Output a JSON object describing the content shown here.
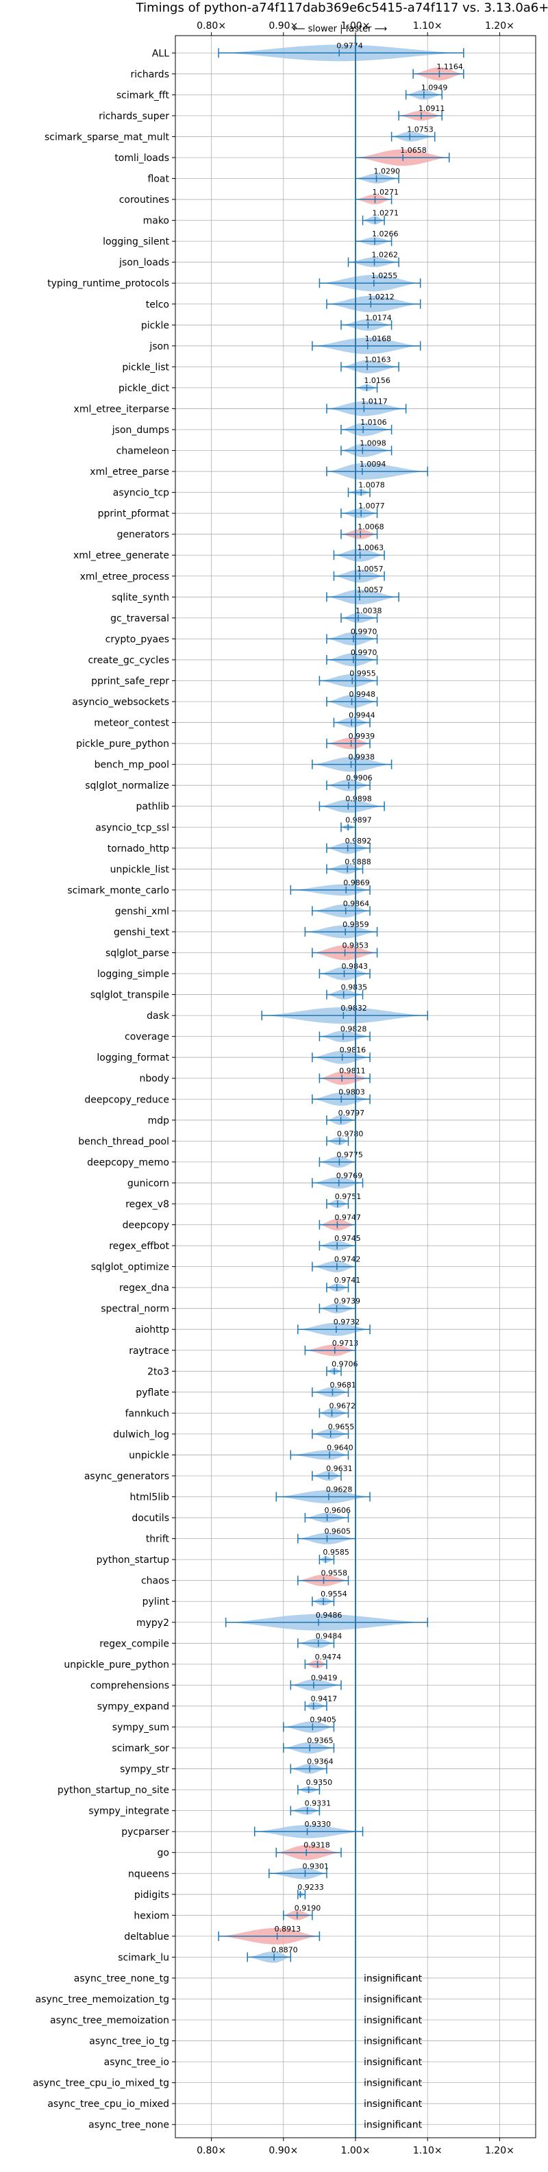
{
  "chart_data": {
    "type": "violin",
    "title": "Timings of python-a74f117dab369e6c5415-a74f117 vs. 3.13.0a6+",
    "direction_label": "⟵ slower | faster ⟶",
    "x_tick_labels": [
      "0.80×",
      "0.90×",
      "1.00×",
      "1.10×",
      "1.20×"
    ],
    "x_ticks": [
      0.8,
      0.9,
      1.0,
      1.1,
      1.2
    ],
    "xlim": [
      0.75,
      1.25
    ],
    "grid": true,
    "reference_line": 1.0,
    "colors": {
      "faster": "#9fc5e8",
      "slower": "#f4a7a7",
      "line": "#1f77b4",
      "grid": "#b0b0b0"
    },
    "insignificant_text": "insignificant",
    "benchmarks": [
      {
        "name": "ALL",
        "value": 0.9774,
        "min": 0.81,
        "max": 1.15,
        "width": 1.0,
        "color": "faster",
        "label": "0.9774"
      },
      {
        "name": "richards",
        "value": 1.1164,
        "min": 1.08,
        "max": 1.15,
        "width": 0.8,
        "color": "slower",
        "label": "1.1164"
      },
      {
        "name": "scimark_fft",
        "value": 1.0949,
        "min": 1.07,
        "max": 1.12,
        "width": 0.6,
        "color": "faster",
        "label": "1.0949"
      },
      {
        "name": "richards_super",
        "value": 1.0911,
        "min": 1.06,
        "max": 1.12,
        "width": 0.6,
        "color": "slower",
        "label": "1.0911"
      },
      {
        "name": "scimark_sparse_mat_mult",
        "value": 1.0753,
        "min": 1.05,
        "max": 1.11,
        "width": 0.6,
        "color": "faster",
        "label": "1.0753"
      },
      {
        "name": "tomli_loads",
        "value": 1.0658,
        "min": 1.0,
        "max": 1.13,
        "width": 1.0,
        "color": "slower",
        "label": "1.0658"
      },
      {
        "name": "float",
        "value": 1.029,
        "min": 1.0,
        "max": 1.06,
        "width": 0.6,
        "color": "faster",
        "label": "1.0290"
      },
      {
        "name": "coroutines",
        "value": 1.0271,
        "min": 1.0,
        "max": 1.05,
        "width": 0.6,
        "color": "slower",
        "label": "1.0271"
      },
      {
        "name": "mako",
        "value": 1.0271,
        "min": 1.01,
        "max": 1.04,
        "width": 0.5,
        "color": "faster",
        "label": "1.0271"
      },
      {
        "name": "logging_silent",
        "value": 1.0266,
        "min": 1.0,
        "max": 1.05,
        "width": 0.5,
        "color": "faster",
        "label": "1.0266"
      },
      {
        "name": "json_loads",
        "value": 1.0262,
        "min": 0.99,
        "max": 1.06,
        "width": 0.6,
        "color": "faster",
        "label": "1.0262"
      },
      {
        "name": "typing_runtime_protocols",
        "value": 1.0255,
        "min": 0.95,
        "max": 1.09,
        "width": 1.0,
        "color": "faster",
        "label": "1.0255"
      },
      {
        "name": "telco",
        "value": 1.0212,
        "min": 0.96,
        "max": 1.09,
        "width": 1.0,
        "color": "faster",
        "label": "1.0212"
      },
      {
        "name": "pickle",
        "value": 1.0174,
        "min": 0.98,
        "max": 1.05,
        "width": 0.7,
        "color": "faster",
        "label": "1.0174"
      },
      {
        "name": "json",
        "value": 1.0168,
        "min": 0.94,
        "max": 1.09,
        "width": 1.0,
        "color": "faster",
        "label": "1.0168"
      },
      {
        "name": "pickle_list",
        "value": 1.0163,
        "min": 0.98,
        "max": 1.06,
        "width": 0.8,
        "color": "faster",
        "label": "1.0163"
      },
      {
        "name": "pickle_dict",
        "value": 1.0156,
        "min": 1.0,
        "max": 1.03,
        "width": 0.4,
        "color": "faster",
        "label": "1.0156"
      },
      {
        "name": "xml_etree_iterparse",
        "value": 1.0117,
        "min": 0.96,
        "max": 1.07,
        "width": 0.9,
        "color": "faster",
        "label": "1.0117"
      },
      {
        "name": "json_dumps",
        "value": 1.0106,
        "min": 0.98,
        "max": 1.05,
        "width": 0.8,
        "color": "faster",
        "label": "1.0106"
      },
      {
        "name": "chameleon",
        "value": 1.0098,
        "min": 0.98,
        "max": 1.05,
        "width": 0.8,
        "color": "faster",
        "label": "1.0098"
      },
      {
        "name": "xml_etree_parse",
        "value": 1.0094,
        "min": 0.96,
        "max": 1.1,
        "width": 1.0,
        "color": "faster",
        "label": "1.0094"
      },
      {
        "name": "asyncio_tcp",
        "value": 1.0078,
        "min": 0.99,
        "max": 1.02,
        "width": 0.4,
        "color": "faster",
        "label": "1.0078"
      },
      {
        "name": "pprint_pformat",
        "value": 1.0077,
        "min": 0.98,
        "max": 1.03,
        "width": 0.6,
        "color": "faster",
        "label": "1.0077"
      },
      {
        "name": "generators",
        "value": 1.0068,
        "min": 0.98,
        "max": 1.03,
        "width": 0.6,
        "color": "slower",
        "label": "1.0068"
      },
      {
        "name": "xml_etree_generate",
        "value": 1.0063,
        "min": 0.97,
        "max": 1.04,
        "width": 0.8,
        "color": "faster",
        "label": "1.0063"
      },
      {
        "name": "xml_etree_process",
        "value": 1.0057,
        "min": 0.97,
        "max": 1.04,
        "width": 0.8,
        "color": "faster",
        "label": "1.0057"
      },
      {
        "name": "sqlite_synth",
        "value": 1.0057,
        "min": 0.96,
        "max": 1.06,
        "width": 0.9,
        "color": "faster",
        "label": "1.0057"
      },
      {
        "name": "gc_traversal",
        "value": 1.0038,
        "min": 0.98,
        "max": 1.03,
        "width": 0.6,
        "color": "faster",
        "label": "1.0038"
      },
      {
        "name": "crypto_pyaes",
        "value": 0.997,
        "min": 0.96,
        "max": 1.03,
        "width": 0.8,
        "color": "faster",
        "label": "0.9970"
      },
      {
        "name": "create_gc_cycles",
        "value": 0.997,
        "min": 0.96,
        "max": 1.03,
        "width": 0.8,
        "color": "faster",
        "label": "0.9970"
      },
      {
        "name": "pprint_safe_repr",
        "value": 0.9955,
        "min": 0.95,
        "max": 1.03,
        "width": 0.8,
        "color": "faster",
        "label": "0.9955"
      },
      {
        "name": "asyncio_websockets",
        "value": 0.9948,
        "min": 0.96,
        "max": 1.03,
        "width": 0.8,
        "color": "faster",
        "label": "0.9948"
      },
      {
        "name": "meteor_contest",
        "value": 0.9944,
        "min": 0.97,
        "max": 1.02,
        "width": 0.6,
        "color": "faster",
        "label": "0.9944"
      },
      {
        "name": "pickle_pure_python",
        "value": 0.9939,
        "min": 0.96,
        "max": 1.02,
        "width": 0.7,
        "color": "slower",
        "label": "0.9939"
      },
      {
        "name": "bench_mp_pool",
        "value": 0.9938,
        "min": 0.94,
        "max": 1.05,
        "width": 0.9,
        "color": "faster",
        "label": "0.9938"
      },
      {
        "name": "sqlglot_normalize",
        "value": 0.9906,
        "min": 0.96,
        "max": 1.02,
        "width": 0.7,
        "color": "faster",
        "label": "0.9906"
      },
      {
        "name": "pathlib",
        "value": 0.9898,
        "min": 0.95,
        "max": 1.04,
        "width": 0.8,
        "color": "faster",
        "label": "0.9898"
      },
      {
        "name": "asyncio_tcp_ssl",
        "value": 0.9897,
        "min": 0.98,
        "max": 1.0,
        "width": 0.3,
        "color": "faster",
        "label": "0.9897"
      },
      {
        "name": "tornado_http",
        "value": 0.9892,
        "min": 0.96,
        "max": 1.02,
        "width": 0.7,
        "color": "faster",
        "label": "0.9892"
      },
      {
        "name": "unpickle_list",
        "value": 0.9888,
        "min": 0.96,
        "max": 1.01,
        "width": 0.6,
        "color": "faster",
        "label": "0.9888"
      },
      {
        "name": "scimark_monte_carlo",
        "value": 0.9869,
        "min": 0.91,
        "max": 1.02,
        "width": 0.7,
        "color": "faster",
        "label": "0.9869"
      },
      {
        "name": "genshi_xml",
        "value": 0.9864,
        "min": 0.94,
        "max": 1.02,
        "width": 0.8,
        "color": "faster",
        "label": "0.9864"
      },
      {
        "name": "genshi_text",
        "value": 0.9859,
        "min": 0.93,
        "max": 1.03,
        "width": 0.8,
        "color": "faster",
        "label": "0.9859"
      },
      {
        "name": "sqlglot_parse",
        "value": 0.9853,
        "min": 0.94,
        "max": 1.03,
        "width": 0.9,
        "color": "slower",
        "label": "0.9853"
      },
      {
        "name": "logging_simple",
        "value": 0.9843,
        "min": 0.95,
        "max": 1.02,
        "width": 0.8,
        "color": "faster",
        "label": "0.9843"
      },
      {
        "name": "sqlglot_transpile",
        "value": 0.9835,
        "min": 0.96,
        "max": 1.01,
        "width": 0.6,
        "color": "faster",
        "label": "0.9835"
      },
      {
        "name": "dask",
        "value": 0.9832,
        "min": 0.87,
        "max": 1.1,
        "width": 1.0,
        "color": "faster",
        "label": "0.9832"
      },
      {
        "name": "coverage",
        "value": 0.9828,
        "min": 0.95,
        "max": 1.02,
        "width": 0.7,
        "color": "faster",
        "label": "0.9828"
      },
      {
        "name": "logging_format",
        "value": 0.9816,
        "min": 0.94,
        "max": 1.02,
        "width": 0.8,
        "color": "faster",
        "label": "0.9816"
      },
      {
        "name": "nbody",
        "value": 0.9811,
        "min": 0.95,
        "max": 1.02,
        "width": 0.8,
        "color": "slower",
        "label": "0.9811"
      },
      {
        "name": "deepcopy_reduce",
        "value": 0.9803,
        "min": 0.94,
        "max": 1.02,
        "width": 0.8,
        "color": "faster",
        "label": "0.9803"
      },
      {
        "name": "mdp",
        "value": 0.9797,
        "min": 0.96,
        "max": 1.0,
        "width": 0.6,
        "color": "faster",
        "label": "0.9797"
      },
      {
        "name": "bench_thread_pool",
        "value": 0.978,
        "min": 0.96,
        "max": 0.99,
        "width": 0.5,
        "color": "faster",
        "label": "0.9780"
      },
      {
        "name": "deepcopy_memo",
        "value": 0.9775,
        "min": 0.95,
        "max": 1.0,
        "width": 0.7,
        "color": "faster",
        "label": "0.9775"
      },
      {
        "name": "gunicorn",
        "value": 0.9769,
        "min": 0.94,
        "max": 1.01,
        "width": 0.7,
        "color": "faster",
        "label": "0.9769"
      },
      {
        "name": "regex_v8",
        "value": 0.9751,
        "min": 0.96,
        "max": 0.99,
        "width": 0.5,
        "color": "faster",
        "label": "0.9751"
      },
      {
        "name": "deepcopy",
        "value": 0.9747,
        "min": 0.95,
        "max": 1.0,
        "width": 0.7,
        "color": "slower",
        "label": "0.9747"
      },
      {
        "name": "regex_effbot",
        "value": 0.9745,
        "min": 0.95,
        "max": 1.0,
        "width": 0.6,
        "color": "faster",
        "label": "0.9745"
      },
      {
        "name": "sqlglot_optimize",
        "value": 0.9742,
        "min": 0.94,
        "max": 1.0,
        "width": 0.7,
        "color": "faster",
        "label": "0.9742"
      },
      {
        "name": "regex_dna",
        "value": 0.9741,
        "min": 0.96,
        "max": 0.99,
        "width": 0.5,
        "color": "faster",
        "label": "0.9741"
      },
      {
        "name": "spectral_norm",
        "value": 0.9739,
        "min": 0.95,
        "max": 1.0,
        "width": 0.6,
        "color": "faster",
        "label": "0.9739"
      },
      {
        "name": "aiohttp",
        "value": 0.9732,
        "min": 0.92,
        "max": 1.02,
        "width": 0.8,
        "color": "faster",
        "label": "0.9732"
      },
      {
        "name": "raytrace",
        "value": 0.9713,
        "min": 0.93,
        "max": 1.0,
        "width": 0.7,
        "color": "slower",
        "label": "0.9713"
      },
      {
        "name": "2to3",
        "value": 0.9706,
        "min": 0.96,
        "max": 0.98,
        "width": 0.4,
        "color": "faster",
        "label": "0.9706"
      },
      {
        "name": "pyflate",
        "value": 0.9681,
        "min": 0.94,
        "max": 0.99,
        "width": 0.6,
        "color": "faster",
        "label": "0.9681"
      },
      {
        "name": "fannkuch",
        "value": 0.9672,
        "min": 0.95,
        "max": 0.99,
        "width": 0.6,
        "color": "faster",
        "label": "0.9672"
      },
      {
        "name": "dulwich_log",
        "value": 0.9655,
        "min": 0.94,
        "max": 0.99,
        "width": 0.6,
        "color": "faster",
        "label": "0.9655"
      },
      {
        "name": "unpickle",
        "value": 0.964,
        "min": 0.91,
        "max": 0.99,
        "width": 0.6,
        "color": "faster",
        "label": "0.9640"
      },
      {
        "name": "async_generators",
        "value": 0.9631,
        "min": 0.94,
        "max": 0.98,
        "width": 0.6,
        "color": "faster",
        "label": "0.9631"
      },
      {
        "name": "html5lib",
        "value": 0.9628,
        "min": 0.89,
        "max": 1.02,
        "width": 0.8,
        "color": "faster",
        "label": "0.9628"
      },
      {
        "name": "docutils",
        "value": 0.9606,
        "min": 0.93,
        "max": 0.99,
        "width": 0.6,
        "color": "faster",
        "label": "0.9606"
      },
      {
        "name": "thrift",
        "value": 0.9605,
        "min": 0.92,
        "max": 1.0,
        "width": 0.7,
        "color": "faster",
        "label": "0.9605"
      },
      {
        "name": "python_startup",
        "value": 0.9585,
        "min": 0.95,
        "max": 0.97,
        "width": 0.4,
        "color": "faster",
        "label": "0.9585"
      },
      {
        "name": "chaos",
        "value": 0.9558,
        "min": 0.92,
        "max": 0.99,
        "width": 0.7,
        "color": "slower",
        "label": "0.9558"
      },
      {
        "name": "pylint",
        "value": 0.9554,
        "min": 0.94,
        "max": 0.97,
        "width": 0.5,
        "color": "faster",
        "label": "0.9554"
      },
      {
        "name": "mypy2",
        "value": 0.9486,
        "min": 0.82,
        "max": 1.1,
        "width": 1.0,
        "color": "faster",
        "label": "0.9486"
      },
      {
        "name": "regex_compile",
        "value": 0.9484,
        "min": 0.92,
        "max": 0.97,
        "width": 0.6,
        "color": "faster",
        "label": "0.9484"
      },
      {
        "name": "unpickle_pure_python",
        "value": 0.9474,
        "min": 0.93,
        "max": 0.96,
        "width": 0.5,
        "color": "slower",
        "label": "0.9474"
      },
      {
        "name": "comprehensions",
        "value": 0.9419,
        "min": 0.91,
        "max": 0.98,
        "width": 0.7,
        "color": "faster",
        "label": "0.9419"
      },
      {
        "name": "sympy_expand",
        "value": 0.9417,
        "min": 0.93,
        "max": 0.96,
        "width": 0.5,
        "color": "faster",
        "label": "0.9417"
      },
      {
        "name": "sympy_sum",
        "value": 0.9405,
        "min": 0.9,
        "max": 0.97,
        "width": 0.7,
        "color": "faster",
        "label": "0.9405"
      },
      {
        "name": "scimark_sor",
        "value": 0.9365,
        "min": 0.9,
        "max": 0.97,
        "width": 0.7,
        "color": "faster",
        "label": "0.9365"
      },
      {
        "name": "sympy_str",
        "value": 0.9364,
        "min": 0.91,
        "max": 0.96,
        "width": 0.6,
        "color": "faster",
        "label": "0.9364"
      },
      {
        "name": "python_startup_no_site",
        "value": 0.935,
        "min": 0.92,
        "max": 0.95,
        "width": 0.4,
        "color": "faster",
        "label": "0.9350"
      },
      {
        "name": "sympy_integrate",
        "value": 0.9331,
        "min": 0.91,
        "max": 0.95,
        "width": 0.5,
        "color": "faster",
        "label": "0.9331"
      },
      {
        "name": "pycparser",
        "value": 0.933,
        "min": 0.86,
        "max": 1.01,
        "width": 0.8,
        "color": "faster",
        "label": "0.9330"
      },
      {
        "name": "go",
        "value": 0.9318,
        "min": 0.89,
        "max": 0.98,
        "width": 0.9,
        "color": "slower",
        "label": "0.9318"
      },
      {
        "name": "nqueens",
        "value": 0.9301,
        "min": 0.88,
        "max": 0.96,
        "width": 0.7,
        "color": "faster",
        "label": "0.9301"
      },
      {
        "name": "pidigits",
        "value": 0.9233,
        "min": 0.92,
        "max": 0.93,
        "width": 0.3,
        "color": "faster",
        "label": "0.9233"
      },
      {
        "name": "hexiom",
        "value": 0.919,
        "min": 0.9,
        "max": 0.94,
        "width": 0.6,
        "color": "slower",
        "label": "0.9190"
      },
      {
        "name": "deltablue",
        "value": 0.8913,
        "min": 0.81,
        "max": 0.95,
        "width": 1.0,
        "color": "slower",
        "label": "0.8913"
      },
      {
        "name": "scimark_lu",
        "value": 0.887,
        "min": 0.85,
        "max": 0.91,
        "width": 0.7,
        "color": "faster",
        "label": "0.8870"
      },
      {
        "name": "async_tree_none_tg",
        "insignificant": true
      },
      {
        "name": "async_tree_memoization_tg",
        "insignificant": true
      },
      {
        "name": "async_tree_memoization",
        "insignificant": true
      },
      {
        "name": "async_tree_io_tg",
        "insignificant": true
      },
      {
        "name": "async_tree_io",
        "insignificant": true
      },
      {
        "name": "async_tree_cpu_io_mixed_tg",
        "insignificant": true
      },
      {
        "name": "async_tree_cpu_io_mixed",
        "insignificant": true
      },
      {
        "name": "async_tree_none",
        "insignificant": true
      }
    ]
  }
}
